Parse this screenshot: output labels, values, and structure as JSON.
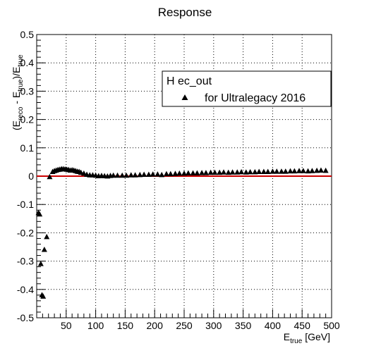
{
  "chart_data": {
    "type": "scatter",
    "title": "Response",
    "xlabel": {
      "main": "E",
      "sub": "true",
      "unit": " [GeV]"
    },
    "ylabel": {
      "p1": "(E",
      "s1": "reco",
      "p2": " - E",
      "s2": "true",
      "p3": ")/E",
      "s3": "true"
    },
    "xlim": [
      0,
      500
    ],
    "ylim": [
      -0.5,
      0.5
    ],
    "grid": true,
    "x_ticks": [
      50,
      100,
      150,
      200,
      250,
      300,
      350,
      400,
      450,
      500
    ],
    "y_ticks": [
      -0.5,
      -0.4,
      -0.3,
      -0.2,
      -0.1,
      0,
      0.1,
      0.2,
      0.3,
      0.4,
      0.5
    ],
    "reference_line": {
      "y": 0,
      "color": "#cc0000"
    },
    "legend": {
      "position": "top-right",
      "header": "H ec_out",
      "entries": [
        {
          "label": "for Ultralegacy 2016",
          "marker": "triangle-up"
        }
      ]
    },
    "series": [
      {
        "marker": "triangle-up",
        "color": "#000000",
        "x": [
          3,
          5,
          7,
          9,
          11,
          13,
          17,
          22,
          27,
          30,
          33,
          36,
          39,
          42,
          45,
          48,
          51,
          54,
          57,
          60,
          63,
          66,
          69,
          72,
          75,
          80,
          85,
          90,
          95,
          100,
          105,
          110,
          115,
          120,
          125,
          130,
          137,
          145,
          152,
          160,
          167,
          175,
          182,
          190,
          197,
          205,
          212,
          220,
          227,
          235,
          242,
          250,
          257,
          265,
          272,
          280,
          287,
          295,
          302,
          310,
          317,
          325,
          332,
          340,
          347,
          355,
          362,
          370,
          377,
          385,
          392,
          400,
          407,
          415,
          422,
          430,
          437,
          445,
          452,
          460,
          467,
          475,
          482,
          490
        ],
        "y": [
          -0.13,
          -0.135,
          -0.31,
          -0.42,
          -0.425,
          -0.26,
          -0.215,
          -0.003,
          0.015,
          0.018,
          0.02,
          0.022,
          0.023,
          0.025,
          0.025,
          0.024,
          0.023,
          0.022,
          0.02,
          0.021,
          0.02,
          0.018,
          0.016,
          0.015,
          0.012,
          0.009,
          0.005,
          0.003,
          0.003,
          0.002,
          0.0,
          0.001,
          0.0,
          -0.001,
          0.001,
          0.002,
          0.002,
          0.002,
          0.002,
          0.003,
          0.003,
          0.004,
          0.005,
          0.005,
          0.006,
          0.006,
          0.004,
          0.007,
          0.007,
          0.008,
          0.009,
          0.009,
          0.01,
          0.01,
          0.01,
          0.011,
          0.011,
          0.012,
          0.012,
          0.012,
          0.013,
          0.012,
          0.013,
          0.013,
          0.014,
          0.013,
          0.014,
          0.014,
          0.015,
          0.015,
          0.015,
          0.016,
          0.016,
          0.016,
          0.016,
          0.017,
          0.017,
          0.018,
          0.018,
          0.017,
          0.018,
          0.019,
          0.02,
          0.019
        ]
      }
    ]
  }
}
